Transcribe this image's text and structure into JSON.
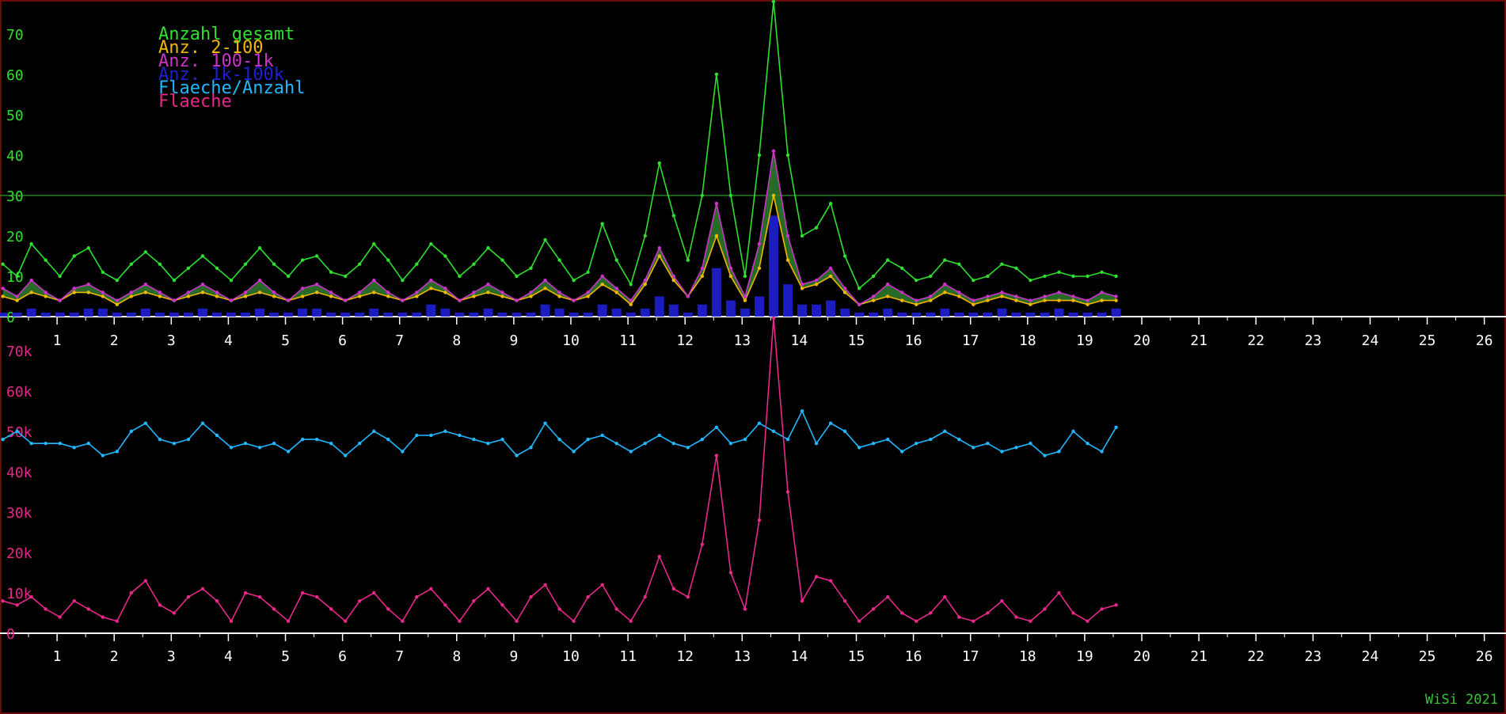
{
  "chart_data": [
    {
      "type": "line",
      "x_range": [
        0,
        26
      ],
      "y_range": [
        0,
        78
      ],
      "y_ticks": [
        "0",
        "10",
        "20",
        "30",
        "40",
        "50",
        "60",
        "70"
      ],
      "x_ticks": [
        "1",
        "2",
        "3",
        "4",
        "5",
        "6",
        "7",
        "8",
        "9",
        "10",
        "11",
        "12",
        "13",
        "14",
        "15",
        "16",
        "17",
        "18",
        "19",
        "20",
        "21",
        "22",
        "23",
        "24",
        "25",
        "26"
      ],
      "reference_line": 30,
      "legend": [
        "Anzahl gesamt",
        "Anz. 2-100",
        "Anz. 100-1k",
        "Anz. 1k-100k",
        "Flaeche/Anzahl",
        "Flaeche"
      ],
      "x": [
        0.0,
        0.25,
        0.5,
        0.75,
        1.0,
        1.25,
        1.5,
        1.75,
        2.0,
        2.25,
        2.5,
        2.75,
        3.0,
        3.25,
        3.5,
        3.75,
        4.0,
        4.25,
        4.5,
        4.75,
        5.0,
        5.25,
        5.5,
        5.75,
        6.0,
        6.25,
        6.5,
        6.75,
        7.0,
        7.25,
        7.5,
        7.75,
        8.0,
        8.25,
        8.5,
        8.75,
        9.0,
        9.25,
        9.5,
        9.75,
        10.0,
        10.25,
        10.5,
        10.75,
        11.0,
        11.25,
        11.5,
        11.75,
        12.0,
        12.25,
        12.5,
        12.75,
        13.0,
        13.25,
        13.5,
        13.75,
        14.0,
        14.25,
        14.5,
        14.75,
        15.0,
        15.25,
        15.5,
        15.75,
        16.0,
        16.25,
        16.5,
        16.75,
        17.0,
        17.25,
        17.5,
        17.75,
        18.0,
        18.25,
        18.5,
        18.75,
        19.0,
        19.25,
        19.5
      ],
      "series": [
        {
          "name": "Anzahl gesamt",
          "color": "#2fe02f",
          "values": [
            13,
            10,
            18,
            14,
            10,
            15,
            17,
            11,
            9,
            13,
            16,
            13,
            9,
            12,
            15,
            12,
            9,
            13,
            17,
            13,
            10,
            14,
            15,
            11,
            10,
            13,
            18,
            14,
            9,
            13,
            18,
            15,
            10,
            13,
            17,
            14,
            10,
            12,
            19,
            14,
            9,
            11,
            23,
            14,
            8,
            20,
            38,
            25,
            14,
            30,
            60,
            30,
            10,
            40,
            78,
            40,
            20,
            22,
            28,
            15,
            7,
            10,
            14,
            12,
            9,
            10,
            14,
            13,
            9,
            10,
            13,
            12,
            9,
            10,
            11,
            10,
            10,
            11,
            10
          ]
        },
        {
          "name": "Anz. 2-100",
          "color": "#f0b800",
          "values": [
            5,
            4,
            6,
            5,
            4,
            6,
            6,
            5,
            3,
            5,
            6,
            5,
            4,
            5,
            6,
            5,
            4,
            5,
            6,
            5,
            4,
            5,
            6,
            5,
            4,
            5,
            6,
            5,
            4,
            5,
            7,
            6,
            4,
            5,
            6,
            5,
            4,
            5,
            7,
            5,
            4,
            5,
            8,
            6,
            3,
            8,
            15,
            9,
            5,
            10,
            20,
            10,
            4,
            12,
            30,
            14,
            7,
            8,
            10,
            6,
            3,
            4,
            5,
            4,
            3,
            4,
            6,
            5,
            3,
            4,
            5,
            4,
            3,
            4,
            4,
            4,
            3,
            4,
            4
          ]
        },
        {
          "name": "Anz. 100-1k",
          "color": "#cc33cc",
          "values": [
            7,
            5,
            9,
            6,
            4,
            7,
            8,
            6,
            4,
            6,
            8,
            6,
            4,
            6,
            8,
            6,
            4,
            6,
            9,
            6,
            4,
            7,
            8,
            6,
            4,
            6,
            9,
            6,
            4,
            6,
            9,
            7,
            4,
            6,
            8,
            6,
            4,
            6,
            9,
            6,
            4,
            6,
            10,
            7,
            4,
            9,
            17,
            10,
            5,
            12,
            28,
            12,
            5,
            18,
            41,
            20,
            8,
            9,
            12,
            7,
            3,
            5,
            8,
            6,
            4,
            5,
            8,
            6,
            4,
            5,
            6,
            5,
            4,
            5,
            6,
            5,
            4,
            6,
            5
          ]
        },
        {
          "name": "Anz. 1k-100k",
          "color": "#1f1fd6",
          "values": [
            1,
            1,
            2,
            1,
            1,
            1,
            2,
            2,
            1,
            1,
            2,
            1,
            1,
            1,
            2,
            1,
            1,
            1,
            2,
            1,
            1,
            2,
            2,
            1,
            1,
            1,
            2,
            1,
            1,
            1,
            3,
            2,
            1,
            1,
            2,
            1,
            1,
            1,
            3,
            2,
            1,
            1,
            3,
            2,
            1,
            2,
            5,
            3,
            1,
            3,
            12,
            4,
            2,
            5,
            25,
            8,
            3,
            3,
            4,
            2,
            1,
            1,
            2,
            1,
            1,
            1,
            2,
            1,
            1,
            1,
            2,
            1,
            1,
            1,
            2,
            1,
            1,
            1,
            2
          ]
        }
      ]
    },
    {
      "type": "line",
      "x_range": [
        0,
        26
      ],
      "y_range": [
        0,
        78
      ],
      "y_ticks": [
        "0",
        "10k",
        "20k",
        "30k",
        "40k",
        "50k",
        "60k",
        "70k"
      ],
      "x_ticks": [
        "1",
        "2",
        "3",
        "4",
        "5",
        "6",
        "7",
        "8",
        "9",
        "10",
        "11",
        "12",
        "13",
        "14",
        "15",
        "16",
        "17",
        "18",
        "19",
        "20",
        "21",
        "22",
        "23",
        "24",
        "25",
        "26"
      ],
      "y_unit": "k",
      "x": [
        0.0,
        0.25,
        0.5,
        0.75,
        1.0,
        1.25,
        1.5,
        1.75,
        2.0,
        2.25,
        2.5,
        2.75,
        3.0,
        3.25,
        3.5,
        3.75,
        4.0,
        4.25,
        4.5,
        4.75,
        5.0,
        5.25,
        5.5,
        5.75,
        6.0,
        6.25,
        6.5,
        6.75,
        7.0,
        7.25,
        7.5,
        7.75,
        8.0,
        8.25,
        8.5,
        8.75,
        9.0,
        9.25,
        9.5,
        9.75,
        10.0,
        10.25,
        10.5,
        10.75,
        11.0,
        11.25,
        11.5,
        11.75,
        12.0,
        12.25,
        12.5,
        12.75,
        13.0,
        13.25,
        13.5,
        13.75,
        14.0,
        14.25,
        14.5,
        14.75,
        15.0,
        15.25,
        15.5,
        15.75,
        16.0,
        16.25,
        16.5,
        16.75,
        17.0,
        17.25,
        17.5,
        17.75,
        18.0,
        18.25,
        18.5,
        18.75,
        19.0,
        19.25,
        19.5
      ],
      "series": [
        {
          "name": "Flaeche/Anzahl",
          "color": "#22b8ff",
          "values": [
            48,
            50,
            47,
            47,
            47,
            46,
            47,
            44,
            45,
            50,
            52,
            48,
            47,
            48,
            52,
            49,
            46,
            47,
            46,
            47,
            45,
            48,
            48,
            47,
            44,
            47,
            50,
            48,
            45,
            49,
            49,
            50,
            49,
            48,
            47,
            48,
            44,
            46,
            52,
            48,
            45,
            48,
            49,
            47,
            45,
            47,
            49,
            47,
            46,
            48,
            51,
            47,
            48,
            52,
            50,
            48,
            55,
            47,
            52,
            50,
            46,
            47,
            48,
            45,
            47,
            48,
            50,
            48,
            46,
            47,
            45,
            46,
            47,
            44,
            45,
            50,
            47,
            45,
            51
          ]
        },
        {
          "name": "Flaeche",
          "color": "#e8288a",
          "values": [
            8,
            7,
            9,
            6,
            4,
            8,
            6,
            4,
            3,
            10,
            13,
            7,
            5,
            9,
            11,
            8,
            3,
            10,
            9,
            6,
            3,
            10,
            9,
            6,
            3,
            8,
            10,
            6,
            3,
            9,
            11,
            7,
            3,
            8,
            11,
            7,
            3,
            9,
            12,
            6,
            3,
            9,
            12,
            6,
            3,
            9,
            19,
            11,
            9,
            22,
            44,
            15,
            6,
            28,
            78,
            35,
            8,
            14,
            13,
            8,
            3,
            6,
            9,
            5,
            3,
            5,
            9,
            4,
            3,
            5,
            8,
            4,
            3,
            6,
            10,
            5,
            3,
            6,
            7
          ]
        }
      ]
    }
  ],
  "credit": "WiSi 2021"
}
